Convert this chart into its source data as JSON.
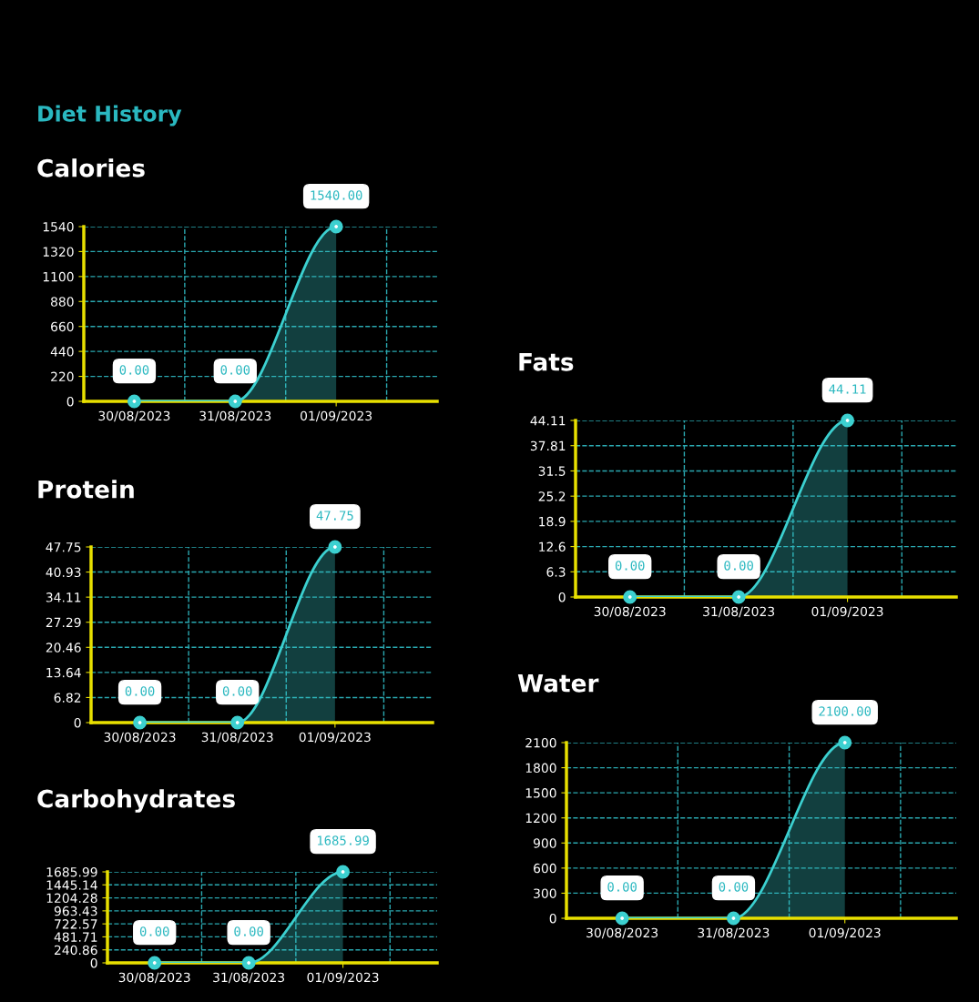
{
  "chart_data": [
    {
      "type": "area",
      "title": "Calories",
      "annotations": [
        "Diet History"
      ],
      "categories": [
        "30/08/2023",
        "31/08/2023",
        "01/09/2023"
      ],
      "values": [
        0,
        0,
        1540
      ],
      "value_labels": [
        "0.00",
        "0.00",
        "1540.00"
      ],
      "ylim": [
        0,
        1540
      ],
      "yticks": [
        0,
        220,
        440,
        660,
        880,
        1100,
        1320,
        1540
      ],
      "grid": true,
      "marker": "circle",
      "color": "#3cd0d0"
    },
    {
      "type": "area",
      "title": "Protein",
      "categories": [
        "30/08/2023",
        "31/08/2023",
        "01/09/2023"
      ],
      "values": [
        0,
        0,
        47.75
      ],
      "value_labels": [
        "0.00",
        "0.00",
        "47.75"
      ],
      "ylim": [
        0,
        47.75
      ],
      "yticks": [
        0,
        6.82,
        13.64,
        20.46,
        27.29,
        34.11,
        40.93,
        47.75
      ],
      "grid": true,
      "marker": "circle",
      "color": "#3cd0d0"
    },
    {
      "type": "area",
      "title": "Carbohydrates",
      "categories": [
        "30/08/2023",
        "31/08/2023",
        "01/09/2023"
      ],
      "values": [
        0,
        0,
        1685.99
      ],
      "value_labels": [
        "0.00",
        "0.00",
        "1685.99"
      ],
      "ylim": [
        0,
        1685.99
      ],
      "yticks": [
        0,
        240.86,
        481.71,
        722.57,
        963.43,
        1204.28,
        1445.14,
        1685.99
      ],
      "grid": true,
      "marker": "circle",
      "color": "#3cd0d0"
    },
    {
      "type": "area",
      "title": "Fats",
      "categories": [
        "30/08/2023",
        "31/08/2023",
        "01/09/2023"
      ],
      "values": [
        0,
        0,
        44.11
      ],
      "value_labels": [
        "0.00",
        "0.00",
        "44.11"
      ],
      "ylim": [
        0,
        44.11
      ],
      "yticks": [
        0,
        6.3,
        12.6,
        18.9,
        25.2,
        31.5,
        37.81,
        44.11
      ],
      "grid": true,
      "marker": "circle",
      "color": "#3cd0d0"
    },
    {
      "type": "area",
      "title": "Water",
      "categories": [
        "30/08/2023",
        "31/08/2023",
        "01/09/2023"
      ],
      "values": [
        0,
        0,
        2100
      ],
      "value_labels": [
        "0.00",
        "0.00",
        "2100.00"
      ],
      "ylim": [
        0,
        2100
      ],
      "yticks": [
        0,
        300,
        600,
        900,
        1200,
        1500,
        1800,
        2100
      ],
      "grid": true,
      "marker": "circle",
      "color": "#3cd0d0"
    }
  ]
}
